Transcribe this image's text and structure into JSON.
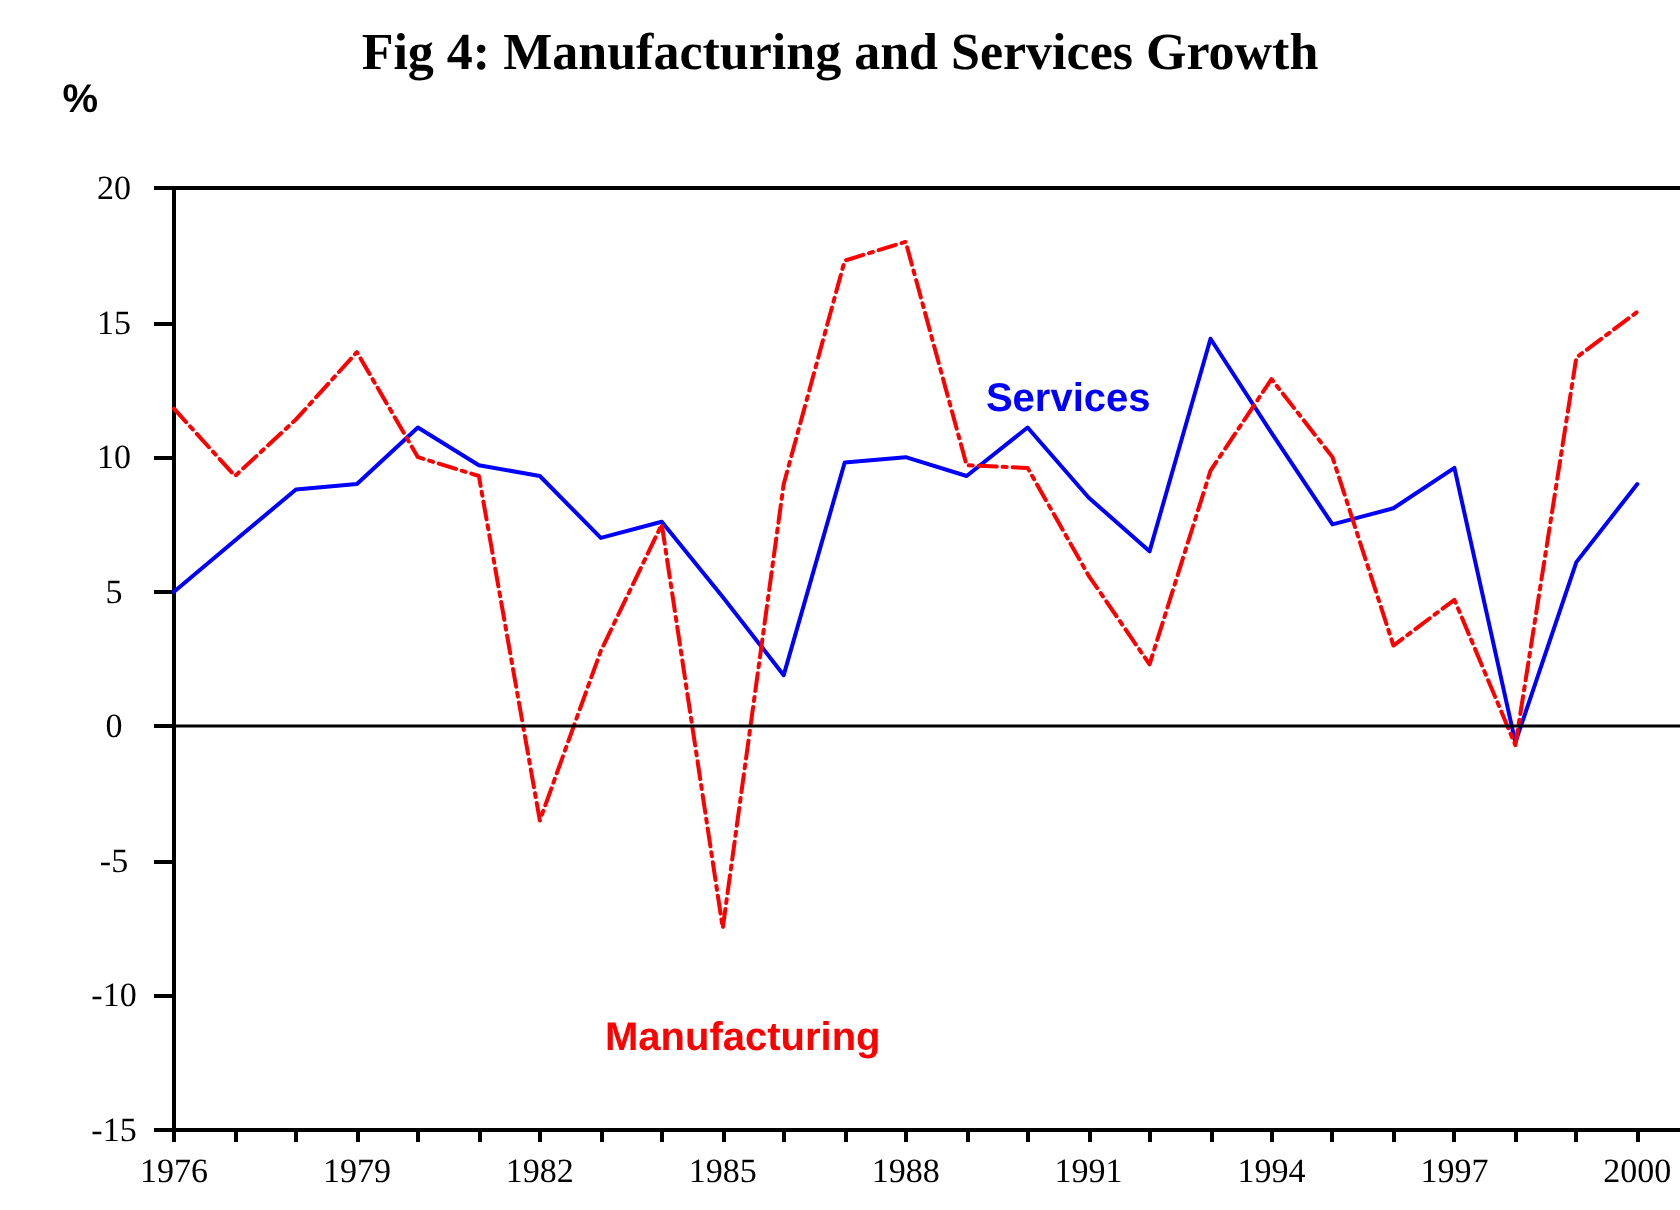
{
  "chart_data": {
    "type": "line",
    "title": "Fig 4: Manufacturing and Services Growth",
    "ylabel": "%",
    "x": [
      1976,
      1977,
      1978,
      1979,
      1980,
      1981,
      1982,
      1983,
      1984,
      1985,
      1986,
      1987,
      1988,
      1989,
      1990,
      1991,
      1992,
      1993,
      1994,
      1995,
      1996,
      1997,
      1998,
      1999,
      2000
    ],
    "series": [
      {
        "name": "Services",
        "color": "#0000ff",
        "line_style": "solid",
        "values": [
          5.0,
          6.9,
          8.8,
          9.0,
          11.1,
          9.7,
          9.3,
          7.0,
          7.6,
          4.8,
          1.9,
          9.8,
          10.0,
          9.3,
          11.1,
          8.5,
          6.5,
          14.4,
          10.9,
          7.5,
          8.1,
          9.6,
          -0.6,
          6.1,
          9.0
        ]
      },
      {
        "name": "Manufacturing",
        "color": "#ff0000",
        "line_style": "dashed",
        "values": [
          11.8,
          9.3,
          11.4,
          13.9,
          10.0,
          9.3,
          -3.5,
          2.8,
          7.5,
          -7.5,
          9.0,
          17.3,
          18.0,
          9.7,
          9.6,
          5.6,
          2.3,
          9.5,
          12.9,
          10.0,
          3.0,
          4.7,
          -0.7,
          13.7,
          15.4
        ]
      }
    ],
    "xlim": [
      1976,
      2000.7
    ],
    "xticks": [
      1976,
      {
        "value": 1977,
        "label": null
      },
      {
        "value": 1978,
        "label": null
      },
      1979,
      {
        "value": 1980,
        "label": null
      },
      {
        "value": 1981,
        "label": null
      },
      1982,
      {
        "value": 1983,
        "label": null
      },
      {
        "value": 1984,
        "label": null
      },
      1985,
      {
        "value": 1986,
        "label": null
      },
      {
        "value": 1987,
        "label": null
      },
      1988,
      {
        "value": 1989,
        "label": null
      },
      {
        "value": 1990,
        "label": null
      },
      1991,
      {
        "value": 1992,
        "label": null
      },
      {
        "value": 1993,
        "label": null
      },
      1994,
      {
        "value": 1995,
        "label": null
      },
      {
        "value": 1996,
        "label": null
      },
      1997,
      {
        "value": 1998,
        "label": null
      },
      {
        "value": 1999,
        "label": null
      },
      2000
    ],
    "ylim": [
      -15,
      20
    ],
    "yticks": [
      -15,
      -10,
      -5,
      0,
      5,
      10,
      15,
      20
    ],
    "ref_lines": [
      {
        "axis": "y",
        "value": 0,
        "color": "#000000"
      }
    ],
    "grid": false,
    "legend": false,
    "marker": "none"
  }
}
